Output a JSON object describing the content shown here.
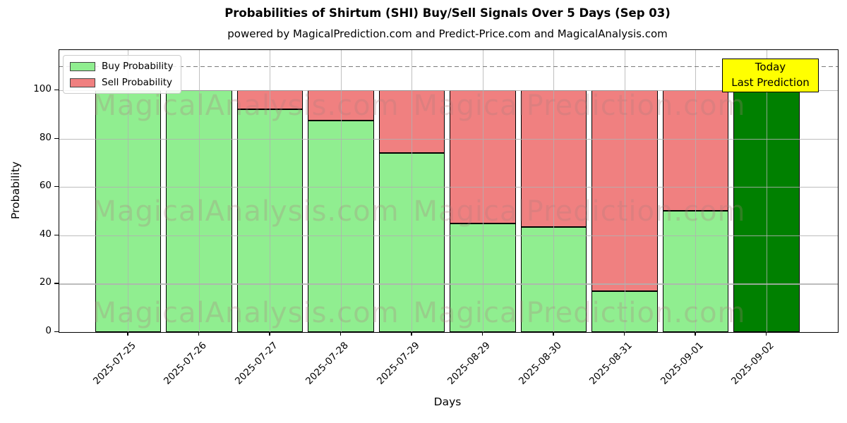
{
  "figure": {
    "title": "Probabilities of Shirtum (SHI) Buy/Sell Signals Over 5 Days (Sep 03)",
    "subtitle": "powered by MagicalPrediction.com and Predict-Price.com and MagicalAnalysis.com",
    "xlabel": "Days",
    "ylabel": "Probability"
  },
  "legend": {
    "buy_label": "Buy Probability",
    "sell_label": "Sell Probability"
  },
  "annotation": {
    "line1": "Today",
    "line2": "Last Prediction"
  },
  "watermarks": {
    "left": "MagicalAnalysis.com",
    "right": "MagicalPrediction.com"
  },
  "colors": {
    "buy": "#90ee90",
    "sell": "#f08080",
    "today_bar": "#008000",
    "annotation_bg": "#ffff00",
    "grid": "#b0b0b0",
    "dashed_line": "#7a7a7a",
    "watermark": "rgba(174,124,124,0.28)"
  },
  "chart_data": {
    "type": "bar",
    "stacked": true,
    "title": "Probabilities of Shirtum (SHI) Buy/Sell Signals Over 5 Days (Sep 03)",
    "xlabel": "Days",
    "ylabel": "Probability",
    "grid": true,
    "legend_position": "upper left",
    "categories": [
      "2025-07-25",
      "2025-07-26",
      "2025-07-27",
      "2025-07-28",
      "2025-07-29",
      "2025-08-29",
      "2025-08-30",
      "2025-08-31",
      "2025-09-01",
      "2025-09-02"
    ],
    "series": [
      {
        "name": "Buy Probability",
        "color": "#90ee90",
        "values": [
          100,
          100,
          92,
          87.5,
          74,
          45,
          43.5,
          17,
          50,
          100
        ]
      },
      {
        "name": "Sell Probability",
        "color": "#f08080",
        "values": [
          0,
          0,
          8,
          12.5,
          26,
          55,
          56.5,
          83,
          50,
          0
        ]
      }
    ],
    "today_index": 9,
    "today_color": "#008000",
    "yticks": [
      0,
      20,
      40,
      60,
      80,
      100
    ],
    "ylim": [
      0,
      116.6
    ],
    "dashed_line_y": 110
  }
}
